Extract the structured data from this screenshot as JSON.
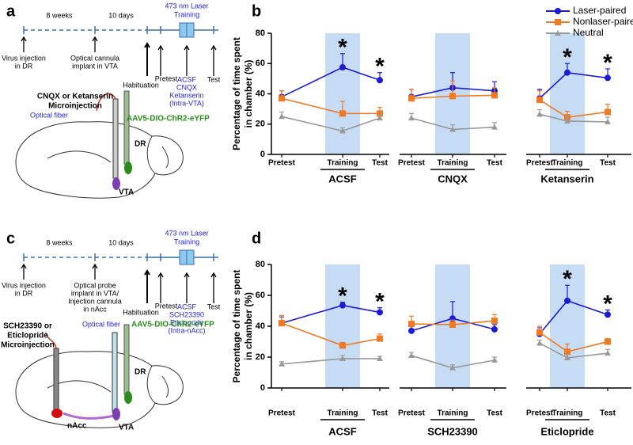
{
  "panel_labels": [
    "a",
    "b",
    "c",
    "d"
  ],
  "diagrams": [
    {
      "interval_1": "8 weeks",
      "interval_2": "10 days",
      "laser": [
        "473 nm Laser",
        "Training"
      ],
      "events": [
        [
          "Virus injection",
          "in DR"
        ],
        [
          "Optical cannula",
          "implant in VTA"
        ],
        [
          "Habituation"
        ],
        [
          "Pretest"
        ],
        [
          "ACSF",
          "CNQX",
          "Ketanserin",
          "(Intra-VTA)"
        ],
        [
          "Test"
        ]
      ],
      "injection": [
        "CNQX or Ketanserin",
        "Microinjection"
      ],
      "fiber": "Optical fiber",
      "virus": "AAV5-DIO-ChR2-eYFP",
      "regions": [
        "DR",
        "VTA"
      ]
    },
    {
      "interval_1": "8 weeks",
      "interval_2": "10 days",
      "laser": [
        "473 nm Laser",
        "Training"
      ],
      "events": [
        [
          "Virus injection",
          "in DR"
        ],
        [
          "Optical probe",
          "implant in VTA/",
          "Injection cannula",
          "in nAcc"
        ],
        [
          "Habituation"
        ],
        [
          "Pretest"
        ],
        [
          "ACSF",
          "SCH23390",
          "Eticlopride",
          "(Intra-nAcc)"
        ],
        [
          "Test"
        ]
      ],
      "injection": [
        "SCH23390 or",
        "Eticlopride",
        "Microinjection"
      ],
      "fiber": "Optical fiber",
      "virus": "AAV5-DIO-ChR2-eYFP",
      "regions": [
        "DR",
        "nAcc",
        "VTA"
      ]
    }
  ],
  "chart_data": [
    {
      "type": "line",
      "title": "ACSF",
      "ylabel": [
        "Percentage of time spent",
        "in chamber (%)"
      ],
      "categories": [
        "Pretest",
        "Training",
        "Test"
      ],
      "highlight_index": 1,
      "ylim": [
        0,
        80
      ],
      "yticks": [
        0,
        20,
        40,
        60,
        80
      ],
      "series": [
        {
          "name": "Laser-paired",
          "color": "#1a1ad8",
          "marker": "circle",
          "values": [
            38,
            57.5,
            49
          ],
          "errors": [
            4,
            9,
            5
          ]
        },
        {
          "name": "Nonlaser-paired",
          "color": "#f07a22",
          "marker": "square",
          "values": [
            37,
            27,
            27
          ],
          "errors": [
            5,
            8,
            4
          ]
        },
        {
          "name": "Neutral",
          "color": "#999999",
          "marker": "triangle",
          "values": [
            25,
            15.5,
            24
          ],
          "errors": [
            3,
            2,
            2
          ]
        }
      ],
      "annotations": [
        {
          "index": 1,
          "text": "*"
        },
        {
          "index": 2,
          "text": "*"
        }
      ]
    },
    {
      "type": "line",
      "title": "CNQX",
      "categories": [
        "Pretest",
        "Training",
        "Test"
      ],
      "highlight_index": 1,
      "ylim": [
        0,
        80
      ],
      "series": [
        {
          "color": "#1a1ad8",
          "marker": "circle",
          "values": [
            38,
            44,
            42
          ],
          "errors": [
            5,
            10,
            6
          ]
        },
        {
          "color": "#f07a22",
          "marker": "square",
          "values": [
            37,
            38.5,
            39
          ],
          "errors": [
            6,
            10,
            5
          ]
        },
        {
          "color": "#999999",
          "marker": "triangle",
          "values": [
            24,
            16.5,
            18
          ],
          "errors": [
            3,
            3,
            3
          ]
        }
      ]
    },
    {
      "type": "line",
      "title": "Ketanserin",
      "categories": [
        "Pretest",
        "Training",
        "Test"
      ],
      "highlight_index": 1,
      "ylim": [
        0,
        80
      ],
      "series": [
        {
          "color": "#1a1ad8",
          "marker": "circle",
          "values": [
            37,
            54,
            50.5
          ],
          "errors": [
            6,
            6,
            6
          ]
        },
        {
          "color": "#f07a22",
          "marker": "square",
          "values": [
            36,
            24.5,
            28
          ],
          "errors": [
            6,
            4,
            5
          ]
        },
        {
          "color": "#999999",
          "marker": "triangle",
          "values": [
            26.5,
            22,
            21.5
          ],
          "errors": [
            3,
            3,
            3
          ]
        }
      ],
      "annotations": [
        {
          "index": 1,
          "text": "*"
        },
        {
          "index": 2,
          "text": "*"
        }
      ]
    },
    {
      "type": "line",
      "title": "ACSF",
      "ylabel": [
        "Percentage of time spent",
        "in chamber (%)"
      ],
      "categories": [
        "Pretest",
        "Training",
        "Test"
      ],
      "highlight_index": 1,
      "ylim": [
        0,
        80
      ],
      "yticks": [
        0,
        20,
        40,
        60,
        80
      ],
      "series": [
        {
          "color": "#1a1ad8",
          "marker": "circle",
          "values": [
            42,
            53.5,
            49
          ],
          "errors": [
            4,
            2,
            3
          ]
        },
        {
          "color": "#f07a22",
          "marker": "square",
          "values": [
            42,
            27.5,
            32
          ],
          "errors": [
            5,
            2,
            3
          ]
        },
        {
          "color": "#999999",
          "marker": "triangle",
          "values": [
            15.5,
            19,
            19
          ],
          "errors": [
            1.5,
            2,
            1.5
          ]
        }
      ],
      "annotations": [
        {
          "index": 1,
          "text": "*"
        },
        {
          "index": 2,
          "text": "*"
        }
      ]
    },
    {
      "type": "line",
      "title": "SCH23390",
      "categories": [
        "Pretest",
        "Training",
        "Test"
      ],
      "highlight_index": 1,
      "ylim": [
        0,
        80
      ],
      "series": [
        {
          "color": "#1a1ad8",
          "marker": "circle",
          "values": [
            37,
            45,
            38
          ],
          "errors": [
            4,
            11,
            3
          ]
        },
        {
          "color": "#f07a22",
          "marker": "square",
          "values": [
            41.5,
            41,
            43.5
          ],
          "errors": [
            5,
            3,
            4
          ]
        },
        {
          "color": "#999999",
          "marker": "triangle",
          "values": [
            21,
            13,
            18
          ],
          "errors": [
            2,
            2,
            2
          ]
        }
      ]
    },
    {
      "type": "line",
      "title": "Eticlopride",
      "categories": [
        "Pretest",
        "Training",
        "Test"
      ],
      "highlight_index": 1,
      "ylim": [
        0,
        80
      ],
      "series": [
        {
          "color": "#1a1ad8",
          "marker": "circle",
          "values": [
            35,
            56.5,
            47.5
          ],
          "errors": [
            4,
            10,
            3
          ]
        },
        {
          "color": "#f07a22",
          "marker": "square",
          "values": [
            36,
            23.5,
            30
          ],
          "errors": [
            4,
            5,
            2
          ]
        },
        {
          "color": "#999999",
          "marker": "triangle",
          "values": [
            29,
            19.5,
            22.5
          ],
          "errors": [
            2,
            2,
            2.5
          ]
        }
      ],
      "annotations": [
        {
          "index": 1,
          "text": "*"
        },
        {
          "index": 2,
          "text": "*"
        }
      ]
    }
  ]
}
